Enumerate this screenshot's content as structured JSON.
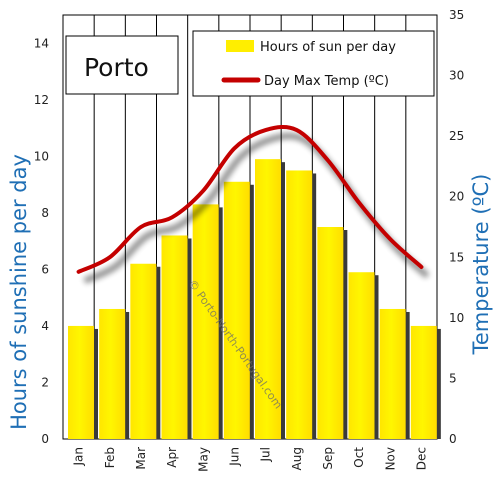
{
  "chart_data": {
    "type": "bar",
    "title": "Porto",
    "categories": [
      "Jan",
      "Feb",
      "Mar",
      "Apr",
      "May",
      "Jun",
      "Jul",
      "Aug",
      "Sep",
      "Oct",
      "Nov",
      "Dec"
    ],
    "series": [
      {
        "name": "Hours of sun per day",
        "type": "bar",
        "axis": "left",
        "values": [
          4.0,
          4.6,
          6.2,
          7.2,
          8.3,
          9.1,
          9.9,
          9.5,
          7.5,
          5.9,
          4.6,
          4.0
        ]
      },
      {
        "name": "Day Max Temp (ºC)",
        "type": "line",
        "axis": "right",
        "values": [
          13.8,
          15.0,
          17.5,
          18.3,
          20.5,
          24.0,
          25.5,
          25.5,
          23.0,
          19.5,
          16.5,
          14.2
        ]
      }
    ],
    "ylabel": "Hours of sunshine per day",
    "ylabel_right": "Temperature (ºC)",
    "ylim": [
      0,
      15
    ],
    "ylim_right": [
      0,
      35
    ],
    "yticks": [
      "0",
      "2",
      "4",
      "6",
      "8",
      "10",
      "12",
      "14"
    ],
    "yticks_right": [
      "0",
      "5",
      "10",
      "15",
      "20",
      "25",
      "30",
      "35"
    ],
    "legend_position": "top-right",
    "grid": "vertical",
    "colors": {
      "bar": "#ffee00",
      "bar_shadow": "#3a3a3a",
      "line": "#c40000",
      "axis_label": "#1f6fb5"
    },
    "watermark": "© Porto-North-Portugal.com"
  }
}
